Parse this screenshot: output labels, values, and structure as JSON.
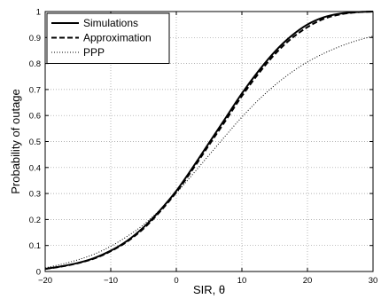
{
  "chart_data": {
    "type": "line",
    "xlabel": "SIR, θ",
    "ylabel": "Probability of outage",
    "xlim": [
      -20,
      30
    ],
    "ylim": [
      0,
      1
    ],
    "grid": true,
    "legend_position": "top-left",
    "x_ticks": [
      "−20",
      "−10",
      "0",
      "10",
      "20",
      "30"
    ],
    "y_ticks": [
      "0",
      "0.1",
      "0.2",
      "0.3",
      "0.4",
      "0.5",
      "0.6",
      "0.7",
      "0.8",
      "0.9",
      "1"
    ],
    "x": [
      -20,
      -17.5,
      -15,
      -12.5,
      -10,
      -7.5,
      -5,
      -2.5,
      0,
      2.5,
      5,
      7.5,
      10,
      12.5,
      15,
      17.5,
      20,
      22.5,
      25,
      27.5,
      30
    ],
    "series": [
      {
        "name": "Simulations",
        "style": "solid",
        "values": [
          0.01,
          0.02,
          0.033,
          0.052,
          0.08,
          0.118,
          0.17,
          0.235,
          0.31,
          0.4,
          0.495,
          0.59,
          0.685,
          0.77,
          0.845,
          0.905,
          0.95,
          0.978,
          0.992,
          0.998,
          1.0
        ]
      },
      {
        "name": "Approximation",
        "style": "dashed",
        "values": [
          0.01,
          0.019,
          0.032,
          0.05,
          0.078,
          0.115,
          0.165,
          0.23,
          0.305,
          0.393,
          0.487,
          0.58,
          0.675,
          0.76,
          0.835,
          0.895,
          0.94,
          0.972,
          0.989,
          0.997,
          1.0
        ]
      },
      {
        "name": "PPP",
        "style": "dotted",
        "values": [
          0.014,
          0.028,
          0.045,
          0.067,
          0.097,
          0.135,
          0.18,
          0.237,
          0.302,
          0.374,
          0.448,
          0.522,
          0.594,
          0.659,
          0.716,
          0.765,
          0.806,
          0.839,
          0.866,
          0.888,
          0.905
        ]
      }
    ]
  }
}
